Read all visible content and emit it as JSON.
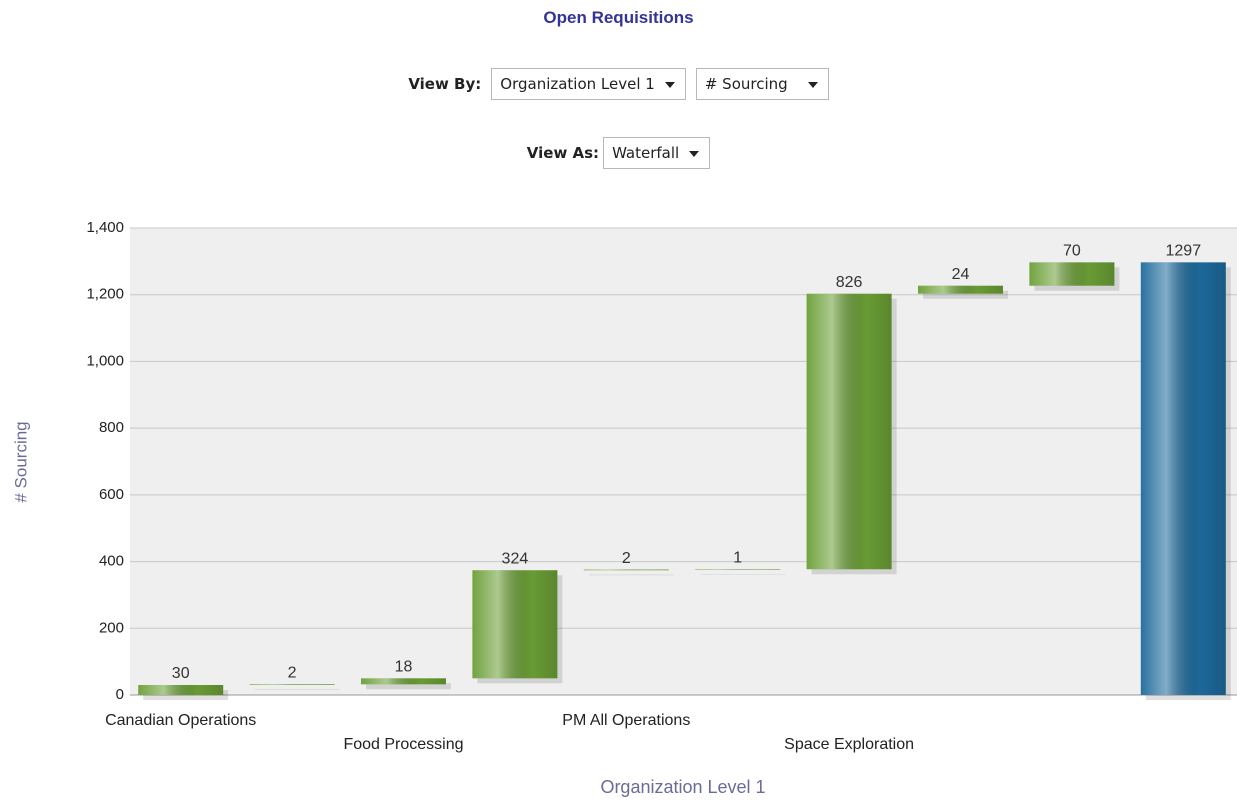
{
  "title": "Open Requisitions",
  "controls": {
    "view_by_label": "View By:",
    "view_by_level": "Organization Level 1",
    "view_by_measure": "# Sourcing",
    "view_as_label": "View As:",
    "view_as": "Waterfall"
  },
  "chart_data": {
    "type": "waterfall",
    "categories": [
      "Canadian Operations",
      null,
      "Food Processing",
      null,
      "PM All Operations",
      null,
      "Space Exploration",
      null,
      null,
      null
    ],
    "values": [
      30,
      2,
      18,
      324,
      2,
      1,
      826,
      24,
      70,
      1297
    ],
    "colors": [
      "#6a9e35",
      "#6a9e35",
      "#6a9e35",
      "#6a9e35",
      "#6a9e35",
      "#6a9e35",
      "#6a9e35",
      "#6a9e35",
      "#6a9e35",
      "#1d6a9c"
    ],
    "total_last": true,
    "y_label": "# Sourcing",
    "x_label": "Organization Level 1",
    "ylim": [
      0,
      1400
    ],
    "yticks": [
      0,
      200,
      400,
      600,
      800,
      {
        "value": 1000,
        "label": "1,000"
      },
      {
        "value": 1200,
        "label": "1,200"
      },
      {
        "value": 1400,
        "label": "1,400"
      }
    ],
    "grid": true
  }
}
